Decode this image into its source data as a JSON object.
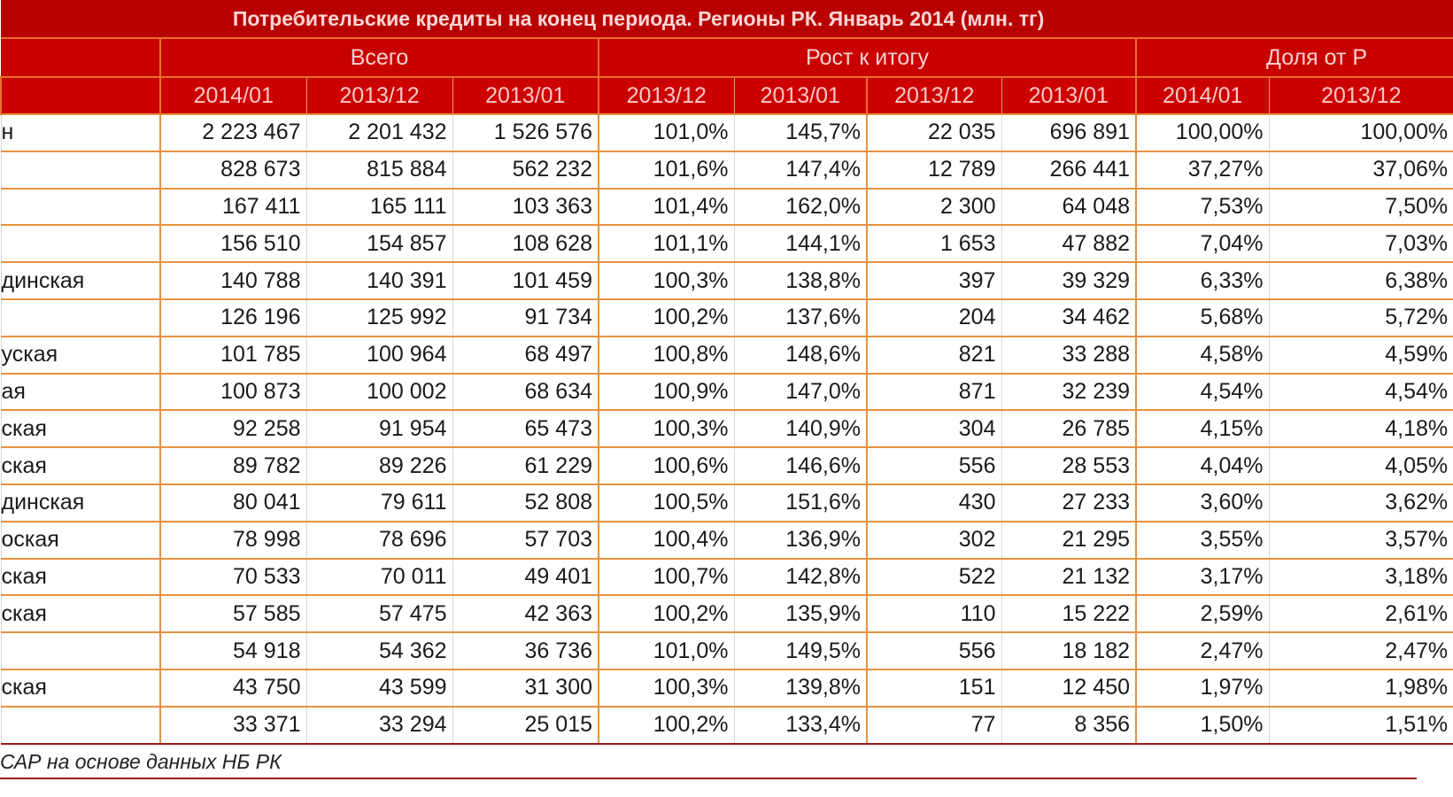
{
  "title": "Потребительские кредиты на конец периода.  Регионы РК. Январь 2014 (млн. тг)",
  "groups": {
    "total": "Всего",
    "growth": "Рост к итогу",
    "share": "Доля от Р"
  },
  "subheaders": [
    "2014/01",
    "2013/12",
    "2013/01",
    "2013/12",
    "2013/01",
    "2013/12",
    "2013/01",
    "2014/01",
    "2013/12"
  ],
  "rows": [
    {
      "label": "н",
      "values": [
        "2 223 467",
        "2 201 432",
        "1 526 576",
        "101,0%",
        "145,7%",
        "22 035",
        "696 891",
        "100,00%",
        "100,00%"
      ]
    },
    {
      "label": "",
      "values": [
        "828 673",
        "815 884",
        "562 232",
        "101,6%",
        "147,4%",
        "12 789",
        "266 441",
        "37,27%",
        "37,06%"
      ]
    },
    {
      "label": "",
      "values": [
        "167 411",
        "165 111",
        "103 363",
        "101,4%",
        "162,0%",
        "2 300",
        "64 048",
        "7,53%",
        "7,50%"
      ]
    },
    {
      "label": "",
      "values": [
        "156 510",
        "154 857",
        "108 628",
        "101,1%",
        "144,1%",
        "1 653",
        "47 882",
        "7,04%",
        "7,03%"
      ]
    },
    {
      "label": "динская",
      "values": [
        "140 788",
        "140 391",
        "101 459",
        "100,3%",
        "138,8%",
        "397",
        "39 329",
        "6,33%",
        "6,38%"
      ]
    },
    {
      "label": "",
      "values": [
        "126 196",
        "125 992",
        "91 734",
        "100,2%",
        "137,6%",
        "204",
        "34 462",
        "5,68%",
        "5,72%"
      ]
    },
    {
      "label": "уская",
      "values": [
        "101 785",
        "100 964",
        "68 497",
        "100,8%",
        "148,6%",
        "821",
        "33 288",
        "4,58%",
        "4,59%"
      ]
    },
    {
      "label": "ая",
      "values": [
        "100 873",
        "100 002",
        "68 634",
        "100,9%",
        "147,0%",
        "871",
        "32 239",
        "4,54%",
        "4,54%"
      ]
    },
    {
      "label": "ская",
      "values": [
        "92 258",
        "91 954",
        "65 473",
        "100,3%",
        "140,9%",
        "304",
        "26 785",
        "4,15%",
        "4,18%"
      ]
    },
    {
      "label": "ская",
      "values": [
        "89 782",
        "89 226",
        "61 229",
        "100,6%",
        "146,6%",
        "556",
        "28 553",
        "4,04%",
        "4,05%"
      ]
    },
    {
      "label": "динская",
      "values": [
        "80 041",
        "79 611",
        "52 808",
        "100,5%",
        "151,6%",
        "430",
        "27 233",
        "3,60%",
        "3,62%"
      ]
    },
    {
      "label": "оская",
      "values": [
        "78 998",
        "78 696",
        "57 703",
        "100,4%",
        "136,9%",
        "302",
        "21 295",
        "3,55%",
        "3,57%"
      ]
    },
    {
      "label": "ская",
      "values": [
        "70 533",
        "70 011",
        "49 401",
        "100,7%",
        "142,8%",
        "522",
        "21 132",
        "3,17%",
        "3,18%"
      ]
    },
    {
      "label": "ская",
      "values": [
        "57 585",
        "57 475",
        "42 363",
        "100,2%",
        "135,9%",
        "110",
        "15 222",
        "2,59%",
        "2,61%"
      ]
    },
    {
      "label": "",
      "values": [
        "54 918",
        "54 362",
        "36 736",
        "101,0%",
        "149,5%",
        "556",
        "18 182",
        "2,47%",
        "2,47%"
      ]
    },
    {
      "label": "ская",
      "values": [
        "43 750",
        "43 599",
        "31 300",
        "100,3%",
        "139,8%",
        "151",
        "12 450",
        "1,97%",
        "1,98%"
      ]
    },
    {
      "label": "",
      "values": [
        "33 371",
        "33 294",
        "25 015",
        "100,2%",
        "133,4%",
        "77",
        "8 356",
        "1,50%",
        "1,51%"
      ]
    }
  ],
  "footer": "САР на основе данных НБ РК",
  "colors": {
    "header": "#c80000",
    "border": "#e8913f"
  }
}
